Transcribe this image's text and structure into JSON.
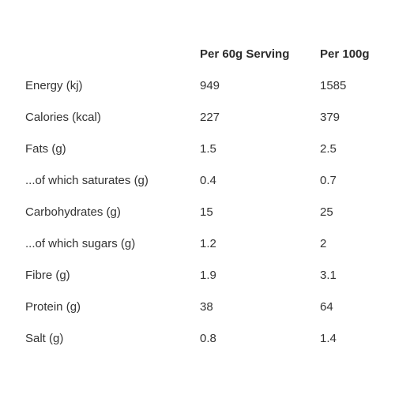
{
  "table": {
    "headers": {
      "label": "",
      "per_serving": "Per 60g Serving",
      "per_100g": "Per 100g"
    },
    "rows": [
      {
        "label": "Energy (kj)",
        "per_serving": "949",
        "per_100g": "1585"
      },
      {
        "label": "Calories (kcal)",
        "per_serving": "227",
        "per_100g": "379"
      },
      {
        "label": "Fats (g)",
        "per_serving": "1.5",
        "per_100g": "2.5"
      },
      {
        "label": "...of which saturates (g)",
        "per_serving": "0.4",
        "per_100g": "0.7"
      },
      {
        "label": "Carbohydrates (g)",
        "per_serving": "15",
        "per_100g": "25"
      },
      {
        "label": "...of which sugars (g)",
        "per_serving": "1.2",
        "per_100g": "2"
      },
      {
        "label": "Fibre (g)",
        "per_serving": "1.9",
        "per_100g": "3.1"
      },
      {
        "label": "Protein (g)",
        "per_serving": "38",
        "per_100g": "64"
      },
      {
        "label": "Salt (g)",
        "per_serving": "0.8",
        "per_100g": "1.4"
      }
    ]
  }
}
